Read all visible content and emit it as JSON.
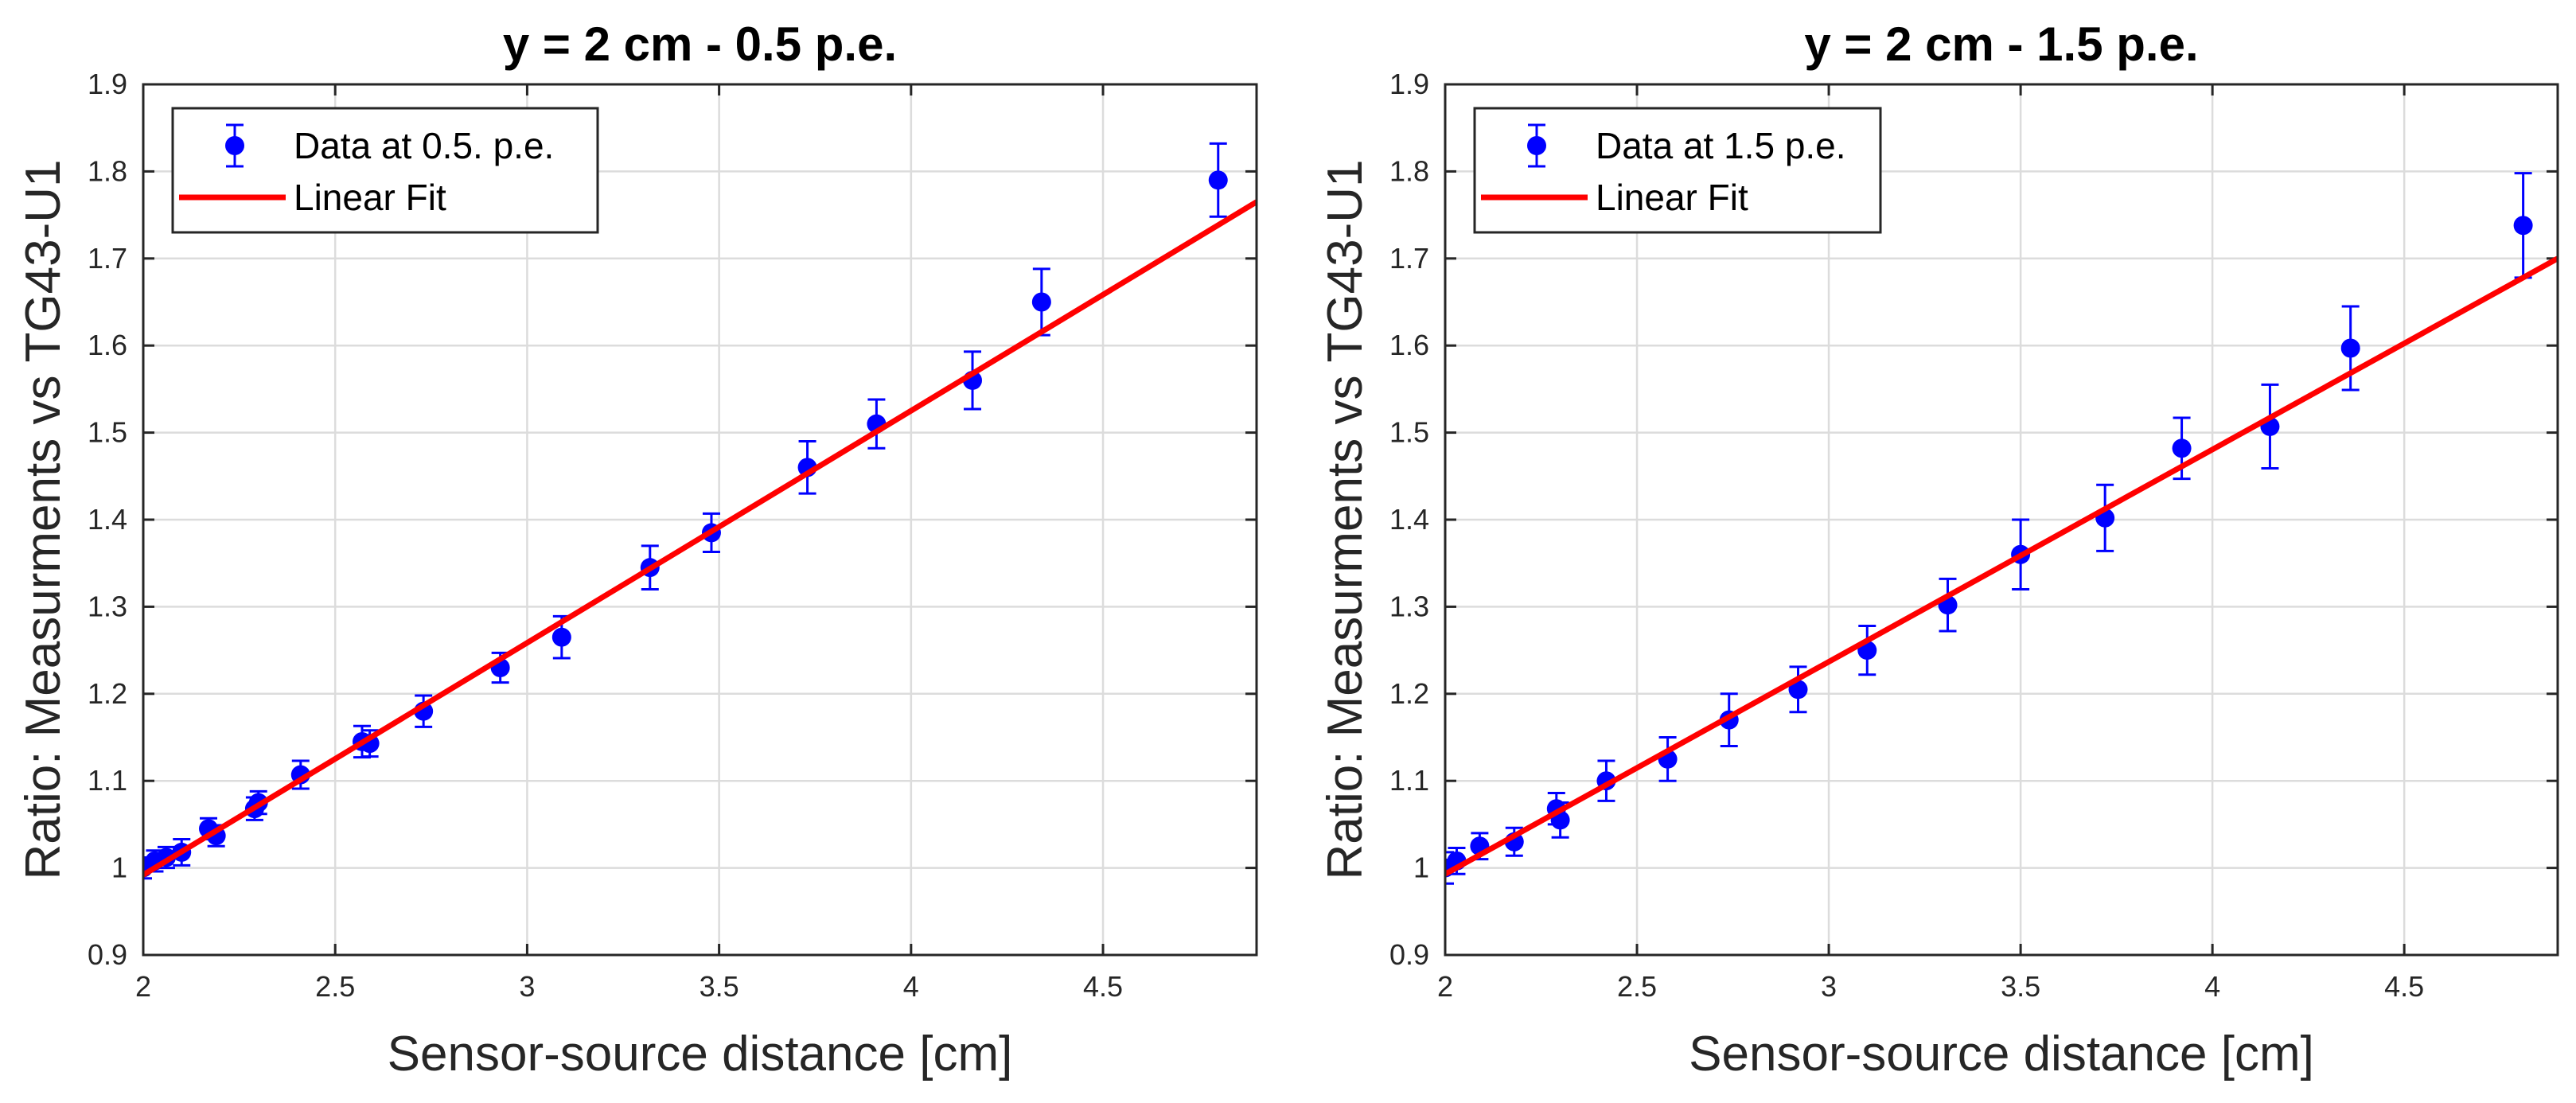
{
  "chart_data": [
    {
      "type": "scatter",
      "title": "y = 2 cm - 0.5 p.e.",
      "xlabel": "Sensor-source distance [cm]",
      "ylabel": "Ratio: Measurments vs TG43-U1",
      "xlim": [
        2,
        4.9
      ],
      "ylim": [
        0.9,
        1.9
      ],
      "xticks": [
        "2",
        "2.5",
        "3",
        "3.5",
        "4",
        "4.5"
      ],
      "yticks": [
        "0.9",
        "1",
        "1.1",
        "1.2",
        "1.3",
        "1.4",
        "1.5",
        "1.6",
        "1.7",
        "1.8",
        "1.9"
      ],
      "grid": true,
      "legend_position": "top-left",
      "series": [
        {
          "name": "Data at 0.5. p.e.",
          "kind": "errorbar",
          "color": "#0000ff",
          "x": [
            2.0,
            2.03,
            2.06,
            2.1,
            2.17,
            2.19,
            2.29,
            2.3,
            2.41,
            2.57,
            2.59,
            2.73,
            2.93,
            3.09,
            3.32,
            3.48,
            3.73,
            3.91,
            4.16,
            4.34,
            4.8
          ],
          "y": [
            1.0,
            1.008,
            1.012,
            1.018,
            1.045,
            1.037,
            1.068,
            1.075,
            1.107,
            1.145,
            1.143,
            1.18,
            1.23,
            1.265,
            1.345,
            1.385,
            1.46,
            1.51,
            1.56,
            1.65,
            1.79
          ],
          "err": [
            0.012,
            0.012,
            0.012,
            0.015,
            0.012,
            0.012,
            0.013,
            0.013,
            0.016,
            0.018,
            0.015,
            0.018,
            0.017,
            0.024,
            0.025,
            0.022,
            0.03,
            0.028,
            0.033,
            0.038,
            0.042
          ]
        },
        {
          "name": "Linear Fit",
          "kind": "line",
          "color": "#ff0000",
          "x": [
            2.0,
            4.9
          ],
          "y": [
            0.992,
            1.765
          ]
        }
      ]
    },
    {
      "type": "scatter",
      "title": "y = 2 cm - 1.5 p.e.",
      "xlabel": "Sensor-source distance [cm]",
      "ylabel": "Ratio: Measurments vs TG43-U1",
      "xlim": [
        2,
        4.9
      ],
      "ylim": [
        0.9,
        1.9
      ],
      "xticks": [
        "2",
        "2.5",
        "3",
        "3.5",
        "4",
        "4.5"
      ],
      "yticks": [
        "0.9",
        "1",
        "1.1",
        "1.2",
        "1.3",
        "1.4",
        "1.5",
        "1.6",
        "1.7",
        "1.8",
        "1.9"
      ],
      "grid": true,
      "legend_position": "top-left",
      "series": [
        {
          "name": "Data at 1.5 p.e.",
          "kind": "errorbar",
          "color": "#0000ff",
          "x": [
            2.0,
            2.03,
            2.09,
            2.18,
            2.29,
            2.3,
            2.42,
            2.58,
            2.74,
            2.92,
            3.1,
            3.31,
            3.5,
            3.72,
            3.92,
            4.15,
            4.36,
            4.81
          ],
          "y": [
            1.0,
            1.008,
            1.025,
            1.03,
            1.068,
            1.055,
            1.1,
            1.125,
            1.17,
            1.205,
            1.25,
            1.302,
            1.36,
            1.402,
            1.482,
            1.507,
            1.597,
            1.738
          ],
          "err": [
            0.018,
            0.015,
            0.015,
            0.016,
            0.018,
            0.02,
            0.023,
            0.025,
            0.03,
            0.026,
            0.028,
            0.03,
            0.04,
            0.038,
            0.035,
            0.048,
            0.048,
            0.06
          ]
        },
        {
          "name": "Linear Fit",
          "kind": "line",
          "color": "#ff0000",
          "x": [
            2.0,
            4.9
          ],
          "y": [
            0.993,
            1.7
          ]
        }
      ]
    }
  ]
}
